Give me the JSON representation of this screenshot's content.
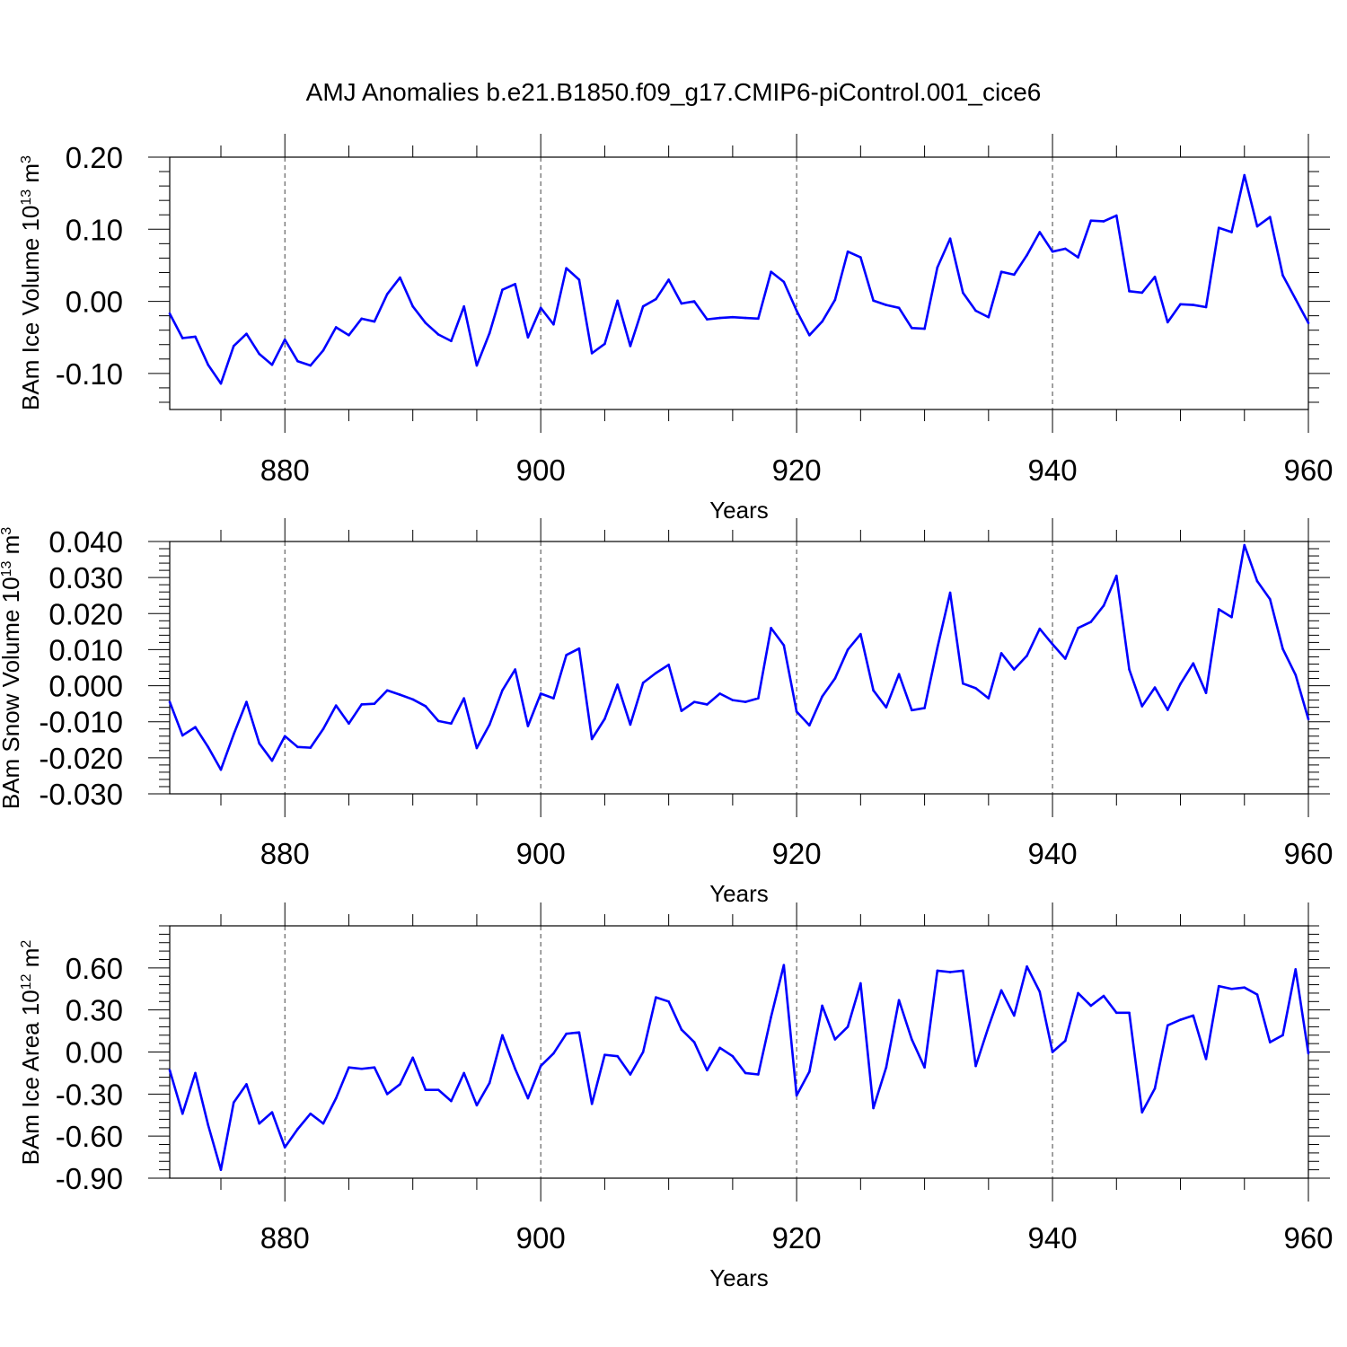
{
  "title": "AMJ Anomalies b.e21.B1850.f09_g17.CMIP6-piControl.001_cice6",
  "chart_data": [
    {
      "type": "line",
      "ylabel_main": "BAm Ice Volume 10",
      "ylabel_exp": "13",
      "ylabel_unit": " m",
      "ylabel_unit_exp": "3",
      "xlabel": "Years",
      "xlim": [
        871,
        960
      ],
      "ylim": [
        -0.15,
        0.2
      ],
      "yticks": [
        -0.1,
        0.0,
        0.1,
        0.2
      ],
      "ytick_labels": [
        "-0.10",
        "0.00",
        "0.10",
        "0.20"
      ],
      "xticks": [
        880,
        900,
        920,
        940,
        960
      ],
      "xtick_labels": [
        "880",
        "900",
        "920",
        "940",
        "960"
      ],
      "line_color": "#0000ff",
      "series": [
        {
          "x_start": 871,
          "values": [
            -0.017,
            -0.051,
            -0.049,
            -0.088,
            -0.114,
            -0.062,
            -0.045,
            -0.073,
            -0.088,
            -0.053,
            -0.083,
            -0.089,
            -0.068,
            -0.036,
            -0.047,
            -0.024,
            -0.028,
            0.01,
            0.033,
            -0.007,
            -0.03,
            -0.046,
            -0.055,
            -0.007,
            -0.089,
            -0.044,
            0.016,
            0.024,
            -0.05,
            -0.009,
            -0.032,
            0.046,
            0.03,
            -0.072,
            -0.059,
            0.001,
            -0.062,
            -0.007,
            0.003,
            0.03,
            -0.003,
            0.0,
            -0.025,
            -0.023,
            -0.022,
            -0.023,
            -0.024,
            0.041,
            0.027,
            -0.013,
            -0.047,
            -0.028,
            0.002,
            0.069,
            0.061,
            0.001,
            -0.005,
            -0.009,
            -0.037,
            -0.038,
            0.047,
            0.087,
            0.012,
            -0.013,
            -0.022,
            0.041,
            0.037,
            0.064,
            0.096,
            0.069,
            0.073,
            0.061,
            0.112,
            0.111,
            0.119,
            0.014,
            0.012,
            0.034,
            -0.029,
            -0.004,
            -0.005,
            -0.008,
            0.102,
            0.096,
            0.175,
            0.104,
            0.117,
            0.036,
            0.003,
            -0.03
          ]
        }
      ]
    },
    {
      "type": "line",
      "ylabel_main": "BAm Snow Volume 10",
      "ylabel_exp": "13",
      "ylabel_unit": " m",
      "ylabel_unit_exp": "3",
      "xlabel": "Years",
      "xlim": [
        871,
        960
      ],
      "ylim": [
        -0.03,
        0.04
      ],
      "yticks": [
        -0.03,
        -0.02,
        -0.01,
        0.0,
        0.01,
        0.02,
        0.03,
        0.04
      ],
      "ytick_labels": [
        "-0.030",
        "-0.020",
        "-0.010",
        "0.000",
        "0.010",
        "0.020",
        "0.030",
        "0.040"
      ],
      "xticks": [
        880,
        900,
        920,
        940,
        960
      ],
      "xtick_labels": [
        "880",
        "900",
        "920",
        "940",
        "960"
      ],
      "line_color": "#0000ff",
      "series": [
        {
          "x_start": 871,
          "values": [
            -0.0045,
            -0.0138,
            -0.0115,
            -0.017,
            -0.0233,
            -0.0135,
            -0.0045,
            -0.016,
            -0.0208,
            -0.014,
            -0.017,
            -0.0172,
            -0.012,
            -0.0055,
            -0.0105,
            -0.0052,
            -0.005,
            -0.0013,
            -0.0025,
            -0.0038,
            -0.0057,
            -0.0098,
            -0.0105,
            -0.0035,
            -0.0173,
            -0.0108,
            -0.0013,
            0.0045,
            -0.0112,
            -0.0022,
            -0.0035,
            0.0085,
            0.0103,
            -0.0148,
            -0.0092,
            0.0003,
            -0.0108,
            0.0008,
            0.0035,
            0.0058,
            -0.007,
            -0.0045,
            -0.0052,
            -0.0022,
            -0.004,
            -0.0045,
            -0.0035,
            0.016,
            0.0112,
            -0.0072,
            -0.011,
            -0.003,
            0.002,
            0.01,
            0.0143,
            -0.0013,
            -0.006,
            0.0032,
            -0.0068,
            -0.0062,
            0.0105,
            0.0258,
            0.0006,
            -0.0007,
            -0.0035,
            0.009,
            0.0045,
            0.0083,
            0.0158,
            0.0115,
            0.0075,
            0.016,
            0.0177,
            0.0222,
            0.0305,
            0.0045,
            -0.0057,
            -0.0005,
            -0.0067,
            0.0005,
            0.0062,
            -0.002,
            0.0212,
            0.019,
            0.039,
            0.029,
            0.024,
            0.0102,
            0.003,
            -0.0093
          ]
        }
      ]
    },
    {
      "type": "line",
      "ylabel_main": "BAm Ice Area 10",
      "ylabel_exp": "12",
      "ylabel_unit": " m",
      "ylabel_unit_exp": "2",
      "xlabel": "Years",
      "xlim": [
        871,
        960
      ],
      "ylim": [
        -0.9,
        0.9
      ],
      "yticks": [
        -0.9,
        -0.6,
        -0.3,
        0.0,
        0.3,
        0.6
      ],
      "ytick_labels": [
        "-0.90",
        "-0.60",
        "-0.30",
        "0.00",
        "0.30",
        "0.60"
      ],
      "xticks": [
        880,
        900,
        920,
        940,
        960
      ],
      "xtick_labels": [
        "880",
        "900",
        "920",
        "940",
        "960"
      ],
      "line_color": "#0000ff",
      "series": [
        {
          "x_start": 871,
          "values": [
            -0.13,
            -0.44,
            -0.15,
            -0.52,
            -0.84,
            -0.36,
            -0.23,
            -0.51,
            -0.43,
            -0.68,
            -0.55,
            -0.44,
            -0.51,
            -0.33,
            -0.11,
            -0.12,
            -0.11,
            -0.3,
            -0.23,
            -0.04,
            -0.27,
            -0.27,
            -0.35,
            -0.15,
            -0.38,
            -0.22,
            0.12,
            -0.12,
            -0.33,
            -0.1,
            -0.01,
            0.13,
            0.14,
            -0.37,
            -0.02,
            -0.03,
            -0.16,
            0.0,
            0.39,
            0.36,
            0.16,
            0.07,
            -0.13,
            0.03,
            -0.03,
            -0.15,
            -0.16,
            0.25,
            0.62,
            -0.31,
            -0.14,
            0.33,
            0.09,
            0.18,
            0.49,
            -0.4,
            -0.11,
            0.37,
            0.09,
            -0.11,
            0.58,
            0.57,
            0.58,
            -0.1,
            0.18,
            0.44,
            0.26,
            0.61,
            0.43,
            0.0,
            0.08,
            0.42,
            0.33,
            0.4,
            0.28,
            0.28,
            -0.43,
            -0.26,
            0.19,
            0.23,
            0.26,
            -0.05,
            0.47,
            0.45,
            0.46,
            0.41,
            0.07,
            0.12,
            0.59,
            -0.01
          ]
        }
      ]
    }
  ]
}
